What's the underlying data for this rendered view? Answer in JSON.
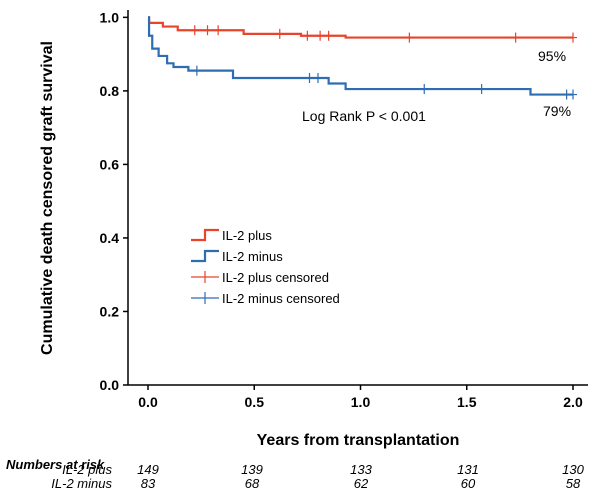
{
  "chart_data": {
    "type": "line",
    "subtype": "kaplan-meier",
    "title": "",
    "xlabel": "Years from transplantation",
    "ylabel": "Cumulative death censored graft survival",
    "xlim": [
      -0.08,
      2.04
    ],
    "ylim": [
      0.0,
      1.02
    ],
    "x_ticks": [
      0.0,
      0.5,
      1.0,
      1.5,
      2.0
    ],
    "x_tick_labels": [
      "0.0",
      "0.5",
      "1.0",
      "1.5",
      "2.0"
    ],
    "y_ticks": [
      0.0,
      0.2,
      0.4,
      0.6,
      0.8,
      1.0
    ],
    "y_tick_labels": [
      "0.0",
      "0.2",
      "0.4",
      "0.6",
      "0.8",
      "1.0"
    ],
    "annotations": {
      "log_rank": "Log Rank P < 0.001",
      "plus_final": "95%",
      "minus_final": "79%"
    },
    "series": [
      {
        "name": "IL-2 plus",
        "color": "#e8432b",
        "steps": [
          [
            0.0,
            1.0
          ],
          [
            0.005,
            0.985
          ],
          [
            0.07,
            0.975
          ],
          [
            0.14,
            0.965
          ],
          [
            0.45,
            0.955
          ],
          [
            0.72,
            0.95
          ],
          [
            0.93,
            0.945
          ],
          [
            2.0,
            0.945
          ]
        ],
        "censored": [
          0.22,
          0.28,
          0.33,
          0.62,
          0.75,
          0.81,
          0.85,
          1.23,
          1.73,
          2.0
        ]
      },
      {
        "name": "IL-2 minus",
        "color": "#2e6db2",
        "steps": [
          [
            0.0,
            1.0
          ],
          [
            0.005,
            0.95
          ],
          [
            0.02,
            0.915
          ],
          [
            0.05,
            0.895
          ],
          [
            0.09,
            0.875
          ],
          [
            0.12,
            0.865
          ],
          [
            0.19,
            0.855
          ],
          [
            0.4,
            0.835
          ],
          [
            0.85,
            0.82
          ],
          [
            0.93,
            0.805
          ],
          [
            1.8,
            0.79
          ],
          [
            2.0,
            0.79
          ]
        ],
        "censored": [
          0.23,
          0.76,
          0.8,
          1.3,
          1.57,
          1.97,
          2.0
        ]
      }
    ],
    "legend": [
      {
        "label": "IL-2 plus",
        "color": "#e8432b",
        "kind": "line"
      },
      {
        "label": "IL-2 minus",
        "color": "#2e6db2",
        "kind": "line"
      },
      {
        "label": "IL-2 plus censored",
        "color": "#e8432b",
        "kind": "censor"
      },
      {
        "label": "IL-2 minus censored",
        "color": "#2e6db2",
        "kind": "censor"
      }
    ],
    "numbers_at_risk": {
      "title": "Numbers at risk",
      "rows": [
        {
          "label": "IL-2 plus",
          "values": [
            "149",
            "139",
            "133",
            "131",
            "130"
          ]
        },
        {
          "label": "IL-2 minus",
          "values": [
            "83",
            "68",
            "62",
            "60",
            "58"
          ]
        }
      ]
    }
  }
}
